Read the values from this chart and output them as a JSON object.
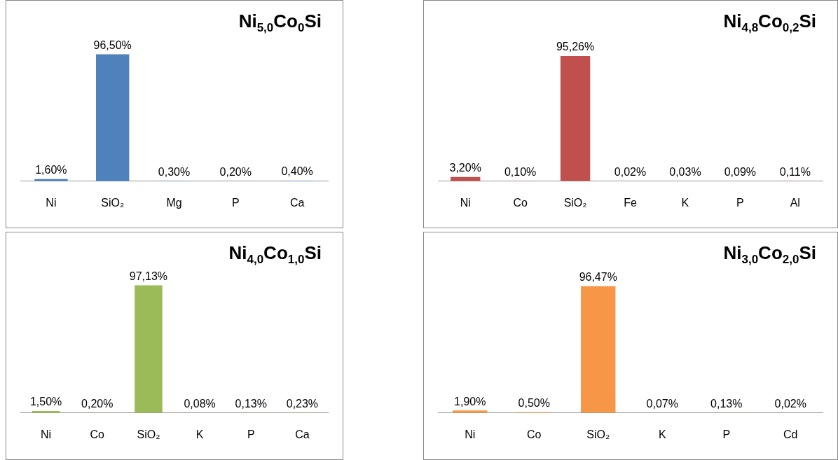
{
  "chart_data": [
    {
      "type": "bar",
      "title": "Ni$_{5,0}$Co$_{0}$Si",
      "categories": [
        "Ni",
        "SiO₂",
        "Mg",
        "P",
        "Ca"
      ],
      "values": [
        1.6,
        96.5,
        0.3,
        0.2,
        0.4
      ],
      "color": "#4f81bd",
      "value_labels": [
        "1,60%",
        "96,50%",
        "0,30%",
        "0,20%",
        "0,40%"
      ]
    },
    {
      "type": "bar",
      "title": "Ni$_{4,8}$Co$_{0,2}$Si",
      "categories": [
        "Ni",
        "Co",
        "SiO₂",
        "Fe",
        "K",
        "P",
        "Al"
      ],
      "values": [
        3.2,
        0.1,
        95.26,
        0.02,
        0.03,
        0.09,
        0.11
      ],
      "color": "#c0504d",
      "value_labels": [
        "3,20%",
        "0,10%",
        "95,26%",
        "0,02%",
        "0,03%",
        "0,09%",
        "0,11%"
      ]
    },
    {
      "type": "bar",
      "title": "Ni$_{4,0}$Co$_{1,0}$Si",
      "categories": [
        "Ni",
        "Co",
        "SiO₂",
        "K",
        "P",
        "Ca"
      ],
      "values": [
        1.5,
        0.2,
        97.13,
        0.08,
        0.13,
        0.23
      ],
      "color": "#9bbb59",
      "value_labels": [
        "1,50%",
        "0,20%",
        "97,13%",
        "0,08%",
        "0,13%",
        "0,23%"
      ]
    },
    {
      "type": "bar",
      "title": "Ni$_{3,0}$Co$_{2,0}$Si",
      "categories": [
        "Ni",
        "Co",
        "SiO₂",
        "K",
        "P",
        "Cd"
      ],
      "values": [
        1.9,
        0.5,
        96.47,
        0.07,
        0.13,
        0.02
      ],
      "color": "#f79646",
      "value_labels": [
        "1,90%",
        "0,50%",
        "96,47%",
        "0,07%",
        "0,13%",
        "0,02%"
      ]
    }
  ]
}
